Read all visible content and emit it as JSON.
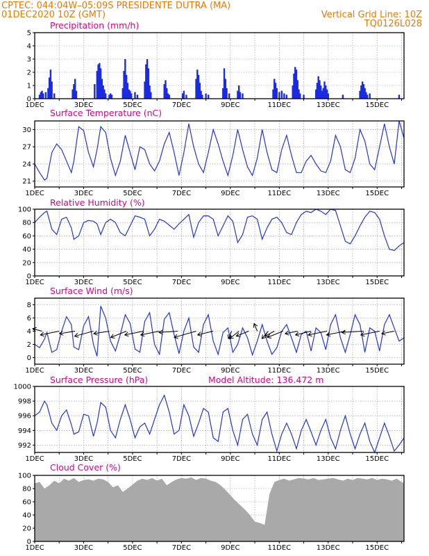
{
  "header": {
    "line1_left": "CPTEC:    044:04W–05:09S    PRESIDENTE DUTRA (MA)",
    "line2_left": "01DEC2020 10Z (GMT)",
    "line2_right": "Vertical Grid Line: 10Z",
    "line3_right": "TQ0126L028"
  },
  "colors": {
    "header": "#f07800",
    "panel_title": "#e0007f",
    "line": "#2233dd",
    "bars": "#1a2be0",
    "cloud": "#a9a9a9",
    "grid": "#909090"
  },
  "x_axis": {
    "tick_labels": [
      "1DEC",
      "3DEC",
      "5DEC",
      "7DEC",
      "9DEC",
      "11DEC",
      "13DEC",
      "15DEC"
    ],
    "start_day": 1,
    "end_day": 16.1
  },
  "chart_data": [
    {
      "type": "bar",
      "title": "Precipitation (mm/h)",
      "ylim": [
        0,
        5
      ],
      "yticks": [
        0,
        1,
        2,
        3,
        4,
        5
      ],
      "x": [
        1.2,
        1.25,
        1.3,
        1.35,
        1.45,
        1.55,
        1.6,
        1.65,
        1.7,
        1.8,
        2.55,
        2.6,
        2.65,
        2.7,
        3.45,
        3.55,
        3.6,
        3.65,
        3.7,
        3.75,
        3.8,
        3.85,
        3.9,
        4.05,
        4.1,
        4.15,
        4.6,
        4.65,
        4.7,
        4.75,
        4.8,
        4.85,
        4.9,
        4.95,
        5.1,
        5.2,
        5.5,
        5.55,
        5.6,
        5.65,
        5.7,
        5.75,
        6.3,
        6.35,
        6.4,
        6.45,
        6.5,
        7.05,
        7.1,
        7.2,
        7.6,
        7.65,
        7.7,
        7.75,
        7.8,
        7.85,
        8.0,
        8.1,
        8.7,
        8.75,
        8.8,
        8.85,
        8.95,
        9.3,
        9.35,
        9.4,
        9.5,
        10.75,
        10.8,
        10.85,
        10.9,
        11.0,
        11.1,
        11.2,
        11.3,
        11.55,
        11.6,
        11.65,
        11.7,
        11.75,
        11.8,
        11.85,
        12.0,
        12.5,
        12.55,
        12.6,
        12.65,
        12.7,
        12.75,
        12.8,
        12.85,
        12.9,
        12.95,
        13.0,
        13.6,
        14.3,
        14.35,
        14.4,
        14.45,
        14.5,
        14.55,
        14.6,
        14.7,
        15.9
      ],
      "values": [
        0.3,
        0.5,
        0.6,
        0.4,
        0.5,
        0.8,
        1.6,
        2.2,
        1.3,
        0.4,
        0.7,
        1.1,
        1.5,
        0.6,
        1.1,
        2.1,
        2.6,
        2.7,
        2.3,
        1.5,
        1.0,
        0.7,
        0.4,
        0.3,
        0.4,
        0.3,
        0.8,
        2.1,
        3.0,
        1.8,
        1.2,
        0.7,
        0.6,
        0.4,
        0.5,
        0.3,
        1.3,
        2.6,
        3.0,
        2.3,
        1.0,
        0.5,
        1.1,
        1.4,
        0.8,
        0.4,
        0.3,
        0.4,
        0.6,
        0.3,
        1.5,
        2.2,
        1.8,
        1.2,
        0.6,
        0.3,
        0.4,
        0.3,
        0.8,
        2.3,
        1.5,
        0.8,
        0.4,
        0.6,
        1.0,
        0.5,
        0.4,
        0.7,
        1.5,
        1.2,
        0.8,
        0.5,
        0.6,
        0.4,
        0.3,
        1.0,
        1.9,
        2.4,
        2.2,
        1.4,
        0.7,
        0.4,
        0.3,
        0.7,
        1.2,
        1.7,
        1.4,
        1.0,
        0.6,
        0.8,
        1.3,
        1.0,
        0.7,
        0.4,
        0.3,
        0.6,
        1.0,
        1.3,
        1.1,
        0.8,
        0.5,
        0.3,
        0.4,
        0.3
      ]
    },
    {
      "type": "line",
      "title": "Surface Temperature (nC)",
      "ylim": [
        20,
        31.5
      ],
      "yticks": [
        21,
        24,
        27,
        30
      ],
      "x": [
        1,
        1.2,
        1.4,
        1.5,
        1.7,
        1.9,
        2.1,
        2.3,
        2.5,
        2.6,
        2.8,
        3.0,
        3.2,
        3.4,
        3.55,
        3.7,
        3.9,
        4.1,
        4.3,
        4.5,
        4.7,
        4.9,
        5.1,
        5.3,
        5.5,
        5.7,
        5.9,
        6.1,
        6.3,
        6.5,
        6.7,
        6.9,
        7.1,
        7.3,
        7.5,
        7.7,
        7.9,
        8.1,
        8.3,
        8.5,
        8.7,
        8.9,
        9.1,
        9.3,
        9.5,
        9.7,
        9.9,
        10.1,
        10.3,
        10.5,
        10.7,
        10.9,
        11.1,
        11.3,
        11.5,
        11.7,
        11.9,
        12.1,
        12.3,
        12.5,
        12.7,
        12.9,
        13.1,
        13.3,
        13.5,
        13.7,
        13.9,
        14.1,
        14.3,
        14.5,
        14.7,
        14.9,
        15.1,
        15.3,
        15.5,
        15.7,
        15.9,
        16.1
      ],
      "values": [
        24.0,
        22.5,
        21.2,
        21.5,
        26.0,
        27.5,
        26.5,
        24.5,
        22.5,
        24.5,
        30.5,
        29.8,
        26.0,
        23.5,
        26.5,
        30.5,
        29.5,
        25.0,
        22.0,
        24.5,
        29.0,
        26.0,
        23.0,
        27.0,
        26.5,
        24.0,
        22.8,
        24.5,
        27.5,
        29.5,
        26.0,
        22.0,
        26.0,
        31.0,
        27.0,
        24.0,
        22.5,
        26.0,
        30.0,
        27.5,
        24.5,
        22.0,
        25.5,
        30.0,
        26.5,
        23.5,
        22.0,
        25.0,
        30.0,
        26.0,
        23.0,
        22.5,
        26.5,
        29.0,
        25.5,
        22.5,
        22.5,
        24.5,
        25.5,
        24.0,
        22.8,
        22.5,
        24.5,
        29.0,
        27.0,
        23.0,
        22.5,
        25.0,
        30.0,
        28.0,
        24.0,
        23.0,
        27.0,
        31.0,
        27.0,
        24.0,
        31.5,
        28.5
      ]
    },
    {
      "type": "line",
      "title": "Relative Humidity (%)",
      "ylim": [
        0,
        100
      ],
      "yticks": [
        0,
        20,
        40,
        60,
        80,
        100
      ],
      "x": [
        1,
        1.2,
        1.4,
        1.5,
        1.7,
        1.9,
        2.1,
        2.3,
        2.5,
        2.6,
        2.8,
        3.0,
        3.2,
        3.4,
        3.55,
        3.7,
        3.9,
        4.1,
        4.3,
        4.5,
        4.7,
        4.9,
        5.1,
        5.3,
        5.5,
        5.7,
        5.9,
        6.1,
        6.3,
        6.5,
        6.7,
        6.9,
        7.1,
        7.3,
        7.5,
        7.7,
        7.9,
        8.1,
        8.3,
        8.5,
        8.7,
        8.9,
        9.1,
        9.3,
        9.5,
        9.7,
        9.9,
        10.1,
        10.3,
        10.5,
        10.7,
        10.9,
        11.1,
        11.3,
        11.5,
        11.7,
        11.9,
        12.1,
        12.3,
        12.5,
        12.7,
        12.9,
        13.1,
        13.3,
        13.5,
        13.7,
        13.9,
        14.1,
        14.3,
        14.5,
        14.7,
        14.9,
        15.1,
        15.3,
        15.5,
        15.7,
        15.9,
        16.1
      ],
      "values": [
        80,
        88,
        95,
        97,
        70,
        62,
        85,
        88,
        72,
        55,
        60,
        80,
        83,
        82,
        78,
        62,
        80,
        85,
        80,
        65,
        60,
        75,
        90,
        88,
        85,
        60,
        70,
        85,
        82,
        76,
        70,
        78,
        85,
        92,
        58,
        80,
        90,
        90,
        85,
        60,
        75,
        90,
        82,
        50,
        62,
        88,
        90,
        85,
        55,
        72,
        85,
        88,
        80,
        65,
        62,
        80,
        92,
        97,
        95,
        100,
        97,
        92,
        100,
        98,
        75,
        52,
        48,
        60,
        75,
        88,
        97,
        95,
        85,
        60,
        40,
        38,
        45,
        50
      ]
    },
    {
      "type": "line",
      "title": "Surface Wind (m/s)",
      "ylim": [
        -1,
        9
      ],
      "yticks": [
        0,
        2,
        4,
        6,
        8
      ],
      "x": [
        1,
        1.2,
        1.4,
        1.5,
        1.7,
        1.9,
        2.1,
        2.3,
        2.5,
        2.6,
        2.8,
        3.0,
        3.2,
        3.4,
        3.55,
        3.7,
        3.9,
        4.1,
        4.3,
        4.5,
        4.7,
        4.9,
        5.1,
        5.3,
        5.5,
        5.7,
        5.9,
        6.1,
        6.3,
        6.5,
        6.7,
        6.9,
        7.1,
        7.3,
        7.5,
        7.7,
        7.9,
        8.1,
        8.3,
        8.5,
        8.7,
        8.9,
        9.1,
        9.3,
        9.5,
        9.7,
        9.9,
        10.1,
        10.3,
        10.5,
        10.7,
        10.9,
        11.1,
        11.3,
        11.5,
        11.7,
        11.9,
        12.1,
        12.3,
        12.5,
        12.7,
        12.9,
        13.1,
        13.3,
        13.5,
        13.7,
        13.9,
        14.1,
        14.3,
        14.5,
        14.7,
        14.9,
        15.1,
        15.3,
        15.5,
        15.7,
        15.9,
        16.1
      ],
      "values": [
        2.0,
        1.5,
        2.8,
        3.8,
        0.8,
        1.2,
        4.0,
        6.2,
        5.0,
        1.6,
        1.2,
        4.8,
        6.2,
        2.0,
        0.2,
        7.8,
        6.0,
        2.5,
        1.0,
        3.5,
        6.5,
        5.2,
        1.3,
        0.8,
        5.5,
        6.8,
        2.0,
        0.5,
        5.8,
        6.8,
        3.5,
        0.6,
        4.0,
        6.0,
        1.6,
        0.8,
        5.0,
        6.5,
        2.5,
        0.5,
        3.8,
        4.5,
        0.8,
        2.0,
        4.5,
        3.0,
        0.4,
        2.5,
        5.0,
        2.5,
        0.5,
        1.5,
        4.0,
        5.0,
        3.0,
        0.8,
        3.5,
        4.0,
        1.0,
        4.5,
        3.8,
        1.2,
        5.0,
        6.5,
        3.0,
        0.8,
        3.5,
        6.5,
        5.0,
        0.8,
        4.5,
        4.0,
        1.0,
        5.0,
        6.5,
        4.5,
        2.5,
        3.0
      ],
      "vectors": [
        {
          "x": 1.3,
          "dx": -0.3,
          "dy": 0.2
        },
        {
          "x": 2.0,
          "dx": -0.6,
          "dy": -0.3
        },
        {
          "x": 2.65,
          "dx": -0.5,
          "dy": -0.2
        },
        {
          "x": 3.4,
          "dx": -0.6,
          "dy": -0.4
        },
        {
          "x": 4.05,
          "dx": -0.5,
          "dy": -0.2
        },
        {
          "x": 4.75,
          "dx": -0.5,
          "dy": -0.5
        },
        {
          "x": 5.45,
          "dx": -0.6,
          "dy": -0.3
        },
        {
          "x": 6.1,
          "dx": -0.6,
          "dy": -0.3
        },
        {
          "x": 6.85,
          "dx": -0.6,
          "dy": -0.1
        },
        {
          "x": 7.6,
          "dx": -0.7,
          "dy": -0.5
        },
        {
          "x": 8.3,
          "dx": -0.5,
          "dy": -0.3
        },
        {
          "x": 9.05,
          "dx": -0.1,
          "dy": -0.6
        },
        {
          "x": 9.35,
          "dx": -0.3,
          "dy": -0.6
        },
        {
          "x": 9.75,
          "dx": -0.4,
          "dy": -0.4
        },
        {
          "x": 10.1,
          "dx": -0.1,
          "dy": 0.6
        },
        {
          "x": 10.55,
          "dx": -0.2,
          "dy": -0.6
        },
        {
          "x": 10.8,
          "dx": -0.3,
          "dy": -0.4
        },
        {
          "x": 11.15,
          "dx": -0.5,
          "dy": -0.5
        },
        {
          "x": 11.75,
          "dx": -0.4,
          "dy": -0.2
        },
        {
          "x": 12.3,
          "dx": -0.5,
          "dy": -0.3
        },
        {
          "x": 12.95,
          "dx": -0.6,
          "dy": -0.3
        },
        {
          "x": 13.7,
          "dx": -0.6,
          "dy": -0.3
        },
        {
          "x": 14.45,
          "dx": -0.7,
          "dy": -0.1
        },
        {
          "x": 15.1,
          "dx": -0.6,
          "dy": -0.3
        },
        {
          "x": 15.7,
          "dx": -0.4,
          "dy": -0.2
        }
      ]
    },
    {
      "type": "line",
      "title": "Surface Pressure (hPa)",
      "ylim": [
        991,
        1000
      ],
      "yticks": [
        992,
        994,
        996,
        998,
        1000
      ],
      "annotation": "Model Altitude: 136.472 m",
      "x": [
        1,
        1.2,
        1.4,
        1.5,
        1.7,
        1.9,
        2.1,
        2.3,
        2.5,
        2.6,
        2.8,
        3.0,
        3.2,
        3.4,
        3.55,
        3.7,
        3.9,
        4.1,
        4.3,
        4.5,
        4.7,
        4.9,
        5.1,
        5.3,
        5.5,
        5.7,
        5.9,
        6.1,
        6.3,
        6.5,
        6.7,
        6.9,
        7.1,
        7.3,
        7.5,
        7.7,
        7.9,
        8.1,
        8.3,
        8.5,
        8.7,
        8.9,
        9.1,
        9.3,
        9.5,
        9.7,
        9.9,
        10.1,
        10.3,
        10.5,
        10.7,
        10.9,
        11.1,
        11.3,
        11.5,
        11.7,
        11.9,
        12.1,
        12.3,
        12.5,
        12.7,
        12.9,
        13.1,
        13.3,
        13.5,
        13.7,
        13.9,
        14.1,
        14.3,
        14.5,
        14.7,
        14.9,
        15.1,
        15.3,
        15.5,
        15.7,
        15.9,
        16.1
      ],
      "values": [
        996.0,
        996.5,
        998.0,
        997.5,
        995.0,
        994.0,
        996.0,
        996.8,
        994.8,
        993.5,
        993.8,
        996.2,
        996.0,
        993.2,
        995.0,
        997.8,
        997.2,
        994.0,
        993.0,
        995.5,
        997.5,
        995.5,
        993.0,
        994.5,
        995.0,
        993.5,
        995.5,
        997.5,
        998.8,
        996.5,
        993.5,
        994.0,
        997.5,
        996.0,
        993.2,
        995.0,
        997.0,
        996.5,
        993.0,
        992.5,
        996.5,
        997.0,
        994.0,
        992.0,
        995.5,
        996.2,
        993.5,
        992.0,
        995.5,
        996.5,
        993.5,
        991.2,
        993.5,
        995.0,
        993.5,
        991.5,
        994.0,
        995.5,
        993.8,
        992.0,
        994.0,
        995.5,
        993.0,
        991.5,
        994.0,
        996.0,
        993.5,
        991.5,
        993.5,
        995.0,
        992.5,
        991.0,
        993.0,
        995.0,
        993.2,
        991.2,
        992.0,
        993.0
      ]
    },
    {
      "type": "area",
      "title": "Cloud Cover (%)",
      "ylim": [
        0,
        100
      ],
      "yticks": [
        0,
        20,
        40,
        60,
        80,
        100
      ],
      "x": [
        1,
        1.2,
        1.4,
        1.6,
        1.8,
        2.0,
        2.2,
        2.4,
        2.6,
        2.8,
        3.0,
        3.2,
        3.4,
        3.6,
        3.8,
        4.0,
        4.2,
        4.4,
        4.6,
        4.8,
        5.0,
        5.2,
        5.4,
        5.6,
        5.8,
        6.0,
        6.2,
        6.4,
        6.6,
        6.8,
        7.0,
        7.2,
        7.4,
        7.6,
        7.8,
        8.0,
        8.2,
        8.4,
        8.6,
        8.8,
        9.0,
        9.2,
        9.4,
        9.6,
        9.8,
        10.0,
        10.2,
        10.4,
        10.6,
        10.8,
        11.0,
        11.2,
        11.4,
        11.6,
        11.8,
        12.0,
        12.2,
        12.4,
        12.6,
        12.8,
        13.0,
        13.2,
        13.4,
        13.6,
        13.8,
        14.0,
        14.2,
        14.4,
        14.6,
        14.8,
        15.0,
        15.2,
        15.4,
        15.6,
        15.8,
        16.0,
        16.1
      ],
      "values": [
        88,
        90,
        80,
        85,
        92,
        88,
        95,
        92,
        96,
        90,
        93,
        94,
        92,
        95,
        94,
        90,
        82,
        85,
        75,
        80,
        86,
        92,
        95,
        93,
        96,
        92,
        95,
        85,
        90,
        94,
        96,
        95,
        97,
        93,
        96,
        95,
        92,
        90,
        85,
        78,
        70,
        62,
        55,
        48,
        40,
        30,
        28,
        25,
        72,
        90,
        93,
        95,
        92,
        94,
        96,
        95,
        94,
        96,
        93,
        94,
        95,
        96,
        94,
        92,
        95,
        93,
        96,
        95,
        94,
        96,
        93,
        95,
        94,
        92,
        95,
        90,
        88
      ]
    }
  ]
}
